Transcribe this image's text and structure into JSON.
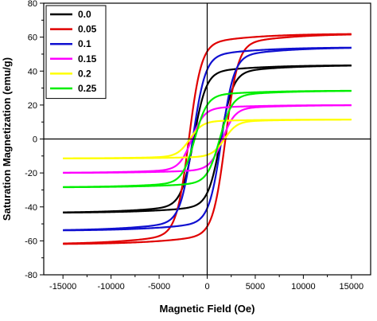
{
  "chart_data": {
    "type": "line",
    "xlabel": "Magnetic Field (Oe)",
    "ylabel": "Saturation Magnetization (emu/g)",
    "xlim": [
      -17000,
      17000
    ],
    "ylim": [
      -80,
      80
    ],
    "xticks": [
      -15000,
      -10000,
      -5000,
      0,
      5000,
      10000,
      15000
    ],
    "yticks": [
      -80,
      -60,
      -40,
      -20,
      0,
      20,
      40,
      60,
      80
    ],
    "legend_position": "top-left",
    "grid": false,
    "series": [
      {
        "name": "0.0",
        "color": "#000000",
        "Ms": 43.5,
        "Hc": 1400
      },
      {
        "name": "0.05",
        "color": "#e00000",
        "Ms": 62,
        "Hc": 1900
      },
      {
        "name": "0.1",
        "color": "#1010d0",
        "Ms": 54,
        "Hc": 1500
      },
      {
        "name": "0.15",
        "color": "#ff00ff",
        "Ms": 20,
        "Hc": 1600
      },
      {
        "name": "0.2",
        "color": "#ffff00",
        "Ms": 11.5,
        "Hc": 1800
      },
      {
        "name": "0.25",
        "color": "#00ee00",
        "Ms": 28.5,
        "Hc": 1300
      }
    ]
  }
}
